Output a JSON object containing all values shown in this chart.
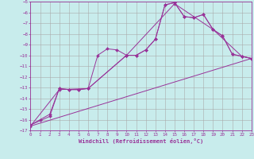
{
  "xlabel": "Windchill (Refroidissement éolien,°C)",
  "background_color": "#c8ecec",
  "grid_color": "#aaaaaa",
  "line_color": "#993399",
  "xlim": [
    0,
    23
  ],
  "ylim": [
    -17,
    -5
  ],
  "xticks": [
    0,
    1,
    2,
    3,
    4,
    5,
    6,
    7,
    8,
    9,
    10,
    11,
    12,
    13,
    14,
    15,
    16,
    17,
    18,
    19,
    20,
    21,
    22,
    23
  ],
  "yticks": [
    -5,
    -6,
    -7,
    -8,
    -9,
    -10,
    -11,
    -12,
    -13,
    -14,
    -15,
    -16,
    -17
  ],
  "line1_x": [
    0,
    1,
    2,
    3,
    4,
    5,
    6,
    7,
    8,
    9,
    10,
    11,
    12,
    13,
    14,
    15,
    16,
    17,
    18,
    19,
    20,
    21,
    22,
    23
  ],
  "line1_y": [
    -16.5,
    -16.0,
    -15.5,
    -13.1,
    -13.2,
    -13.2,
    -13.1,
    -10.0,
    -9.4,
    -9.5,
    -10.0,
    -10.0,
    -9.5,
    -8.5,
    -5.3,
    -5.1,
    -6.4,
    -6.5,
    -6.2,
    -7.6,
    -8.2,
    -9.9,
    -10.1,
    -10.3
  ],
  "line2_x": [
    0,
    2,
    3,
    4,
    5,
    6,
    10,
    11,
    12,
    13,
    14,
    15,
    16,
    17,
    18,
    19,
    20,
    21,
    22,
    23
  ],
  "line2_y": [
    -16.5,
    -15.7,
    -13.1,
    -13.2,
    -13.2,
    -13.1,
    -10.0,
    -10.0,
    -9.5,
    -8.5,
    -5.3,
    -5.1,
    -6.4,
    -6.5,
    -6.2,
    -7.6,
    -8.2,
    -9.9,
    -10.1,
    -10.3
  ],
  "line3_x": [
    0,
    3,
    6,
    10,
    15,
    19,
    22,
    23
  ],
  "line3_y": [
    -16.6,
    -13.2,
    -13.1,
    -10.0,
    -5.2,
    -7.6,
    -10.1,
    -10.3
  ],
  "line4_x": [
    0,
    23
  ],
  "line4_y": [
    -16.6,
    -10.3
  ]
}
